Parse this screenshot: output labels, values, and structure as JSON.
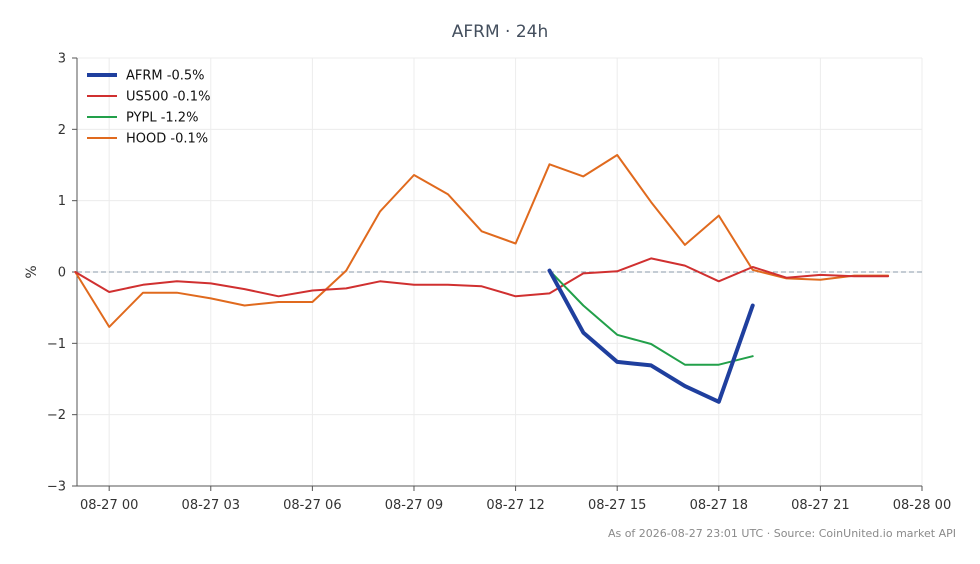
{
  "chart_data": {
    "type": "line",
    "title": "AFRM · 24h",
    "xlabel": "",
    "ylabel": "%",
    "ylim": [
      -3,
      3
    ],
    "yticks": [
      3,
      2,
      1,
      0,
      -1,
      -2,
      -3
    ],
    "ytick_labels": [
      "3",
      "2",
      "1",
      "0",
      "−1",
      "−2",
      "−3"
    ],
    "xlim": [
      -0.95,
      24
    ],
    "xticks": [
      0,
      3,
      6,
      9,
      12,
      15,
      18,
      21,
      24
    ],
    "xtick_labels": [
      "08-27 00",
      "08-27 03",
      "08-27 06",
      "08-27 09",
      "08-27 12",
      "08-27 15",
      "08-27 18",
      "08-27 21",
      "08-28 00"
    ],
    "grid": true,
    "zero_line": true,
    "legend_position": "top-left",
    "series": [
      {
        "name": "AFRM -0.5%",
        "color": "#1f3f9e",
        "width": 4,
        "x": [
          13,
          14,
          15,
          16,
          17,
          18,
          19
        ],
        "y": [
          0.02,
          -0.85,
          -1.26,
          -1.31,
          -1.6,
          -1.82,
          -0.47
        ]
      },
      {
        "name": "US500 -0.1%",
        "color": "#d03030",
        "width": 2,
        "x": [
          -1,
          0,
          1,
          2,
          3,
          4,
          5,
          6,
          7,
          8,
          9,
          10,
          11,
          12,
          13,
          14,
          15,
          16,
          17,
          18,
          19,
          20,
          21,
          22,
          23
        ],
        "y": [
          0.0,
          -0.28,
          -0.18,
          -0.13,
          -0.16,
          -0.24,
          -0.34,
          -0.26,
          -0.23,
          -0.13,
          -0.18,
          -0.18,
          -0.2,
          -0.34,
          -0.3,
          -0.02,
          0.01,
          0.19,
          0.09,
          -0.13,
          0.07,
          -0.08,
          -0.04,
          -0.06,
          -0.06
        ]
      },
      {
        "name": "PYPL -1.2%",
        "color": "#22a04a",
        "width": 2,
        "x": [
          13,
          14,
          15,
          16,
          17,
          18,
          19
        ],
        "y": [
          0.02,
          -0.47,
          -0.88,
          -1.01,
          -1.3,
          -1.3,
          -1.18
        ]
      },
      {
        "name": "HOOD -0.1%",
        "color": "#e06a1e",
        "width": 2,
        "x": [
          -1,
          0,
          1,
          2,
          3,
          4,
          5,
          6,
          7,
          8,
          9,
          10,
          11,
          12,
          13,
          14,
          15,
          16,
          17,
          18,
          19,
          20,
          21,
          22,
          23
        ],
        "y": [
          0.0,
          -0.77,
          -0.29,
          -0.29,
          -0.37,
          -0.47,
          -0.42,
          -0.42,
          0.02,
          0.85,
          1.36,
          1.09,
          0.57,
          0.4,
          1.51,
          1.34,
          1.64,
          0.98,
          0.38,
          0.79,
          0.03,
          -0.09,
          -0.11,
          -0.05,
          -0.05
        ]
      }
    ]
  },
  "footer": "As of 2026-08-27 23:01 UTC · Source: CoinUnited.io market API",
  "colors": {
    "grid": "#ececec",
    "axis": "#555555",
    "zero_line": "#8a9aa8"
  }
}
